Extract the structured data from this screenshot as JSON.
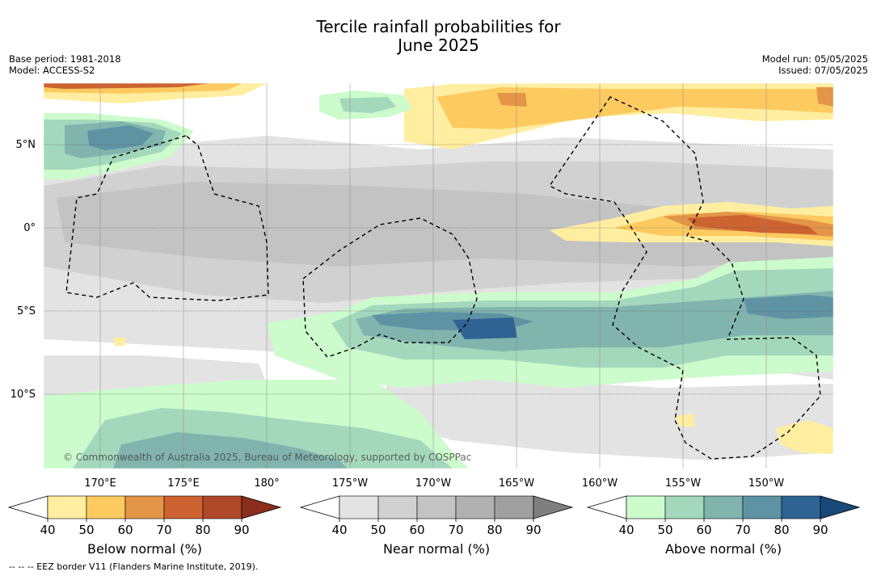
{
  "title": {
    "line1": "Tercile rainfall probabilities for",
    "line2": "June 2025"
  },
  "meta": {
    "base_period": "Base period: 1981-2018",
    "model": "Model: ACCESS-S2",
    "model_run": "Model run: 05/05/2025",
    "issued": "Issued: 07/05/2025"
  },
  "map": {
    "lat_labels": [
      "5°N",
      "0°",
      "5°S",
      "10°S"
    ],
    "lon_labels": [
      "170°E",
      "175°E",
      "180°",
      "175°W",
      "170°W",
      "165°W",
      "160°W",
      "155°W",
      "150°W"
    ],
    "copyright": "© Commonwealth of Australia 2025, Bureau of Meteorology, supported by COSPPac"
  },
  "colorbars": [
    {
      "label": "Below normal (%)",
      "ticks": [
        "40",
        "50",
        "60",
        "70",
        "80",
        "90"
      ],
      "colors": [
        "#ffeea0",
        "#fdca60",
        "#e39548",
        "#cd6331",
        "#ae4826",
        "#8a2d1c"
      ]
    },
    {
      "label": "Near normal (%)",
      "ticks": [
        "40",
        "50",
        "60",
        "70",
        "80",
        "90"
      ],
      "colors": [
        "#e3e3e3",
        "#d1d1d1",
        "#c3c3c3",
        "#b1b1b1",
        "#9f9f9f",
        "#7f7f7f"
      ]
    },
    {
      "label": "Above normal (%)",
      "ticks": [
        "40",
        "50",
        "60",
        "70",
        "80",
        "90"
      ],
      "colors": [
        "#ccfbcc",
        "#a4d8bc",
        "#82b4ae",
        "#5e93a4",
        "#2f6393",
        "#184979"
      ]
    }
  ],
  "footer": "--  --  -- EEZ border V11 (Flanders Marine Institute, 2019)."
}
